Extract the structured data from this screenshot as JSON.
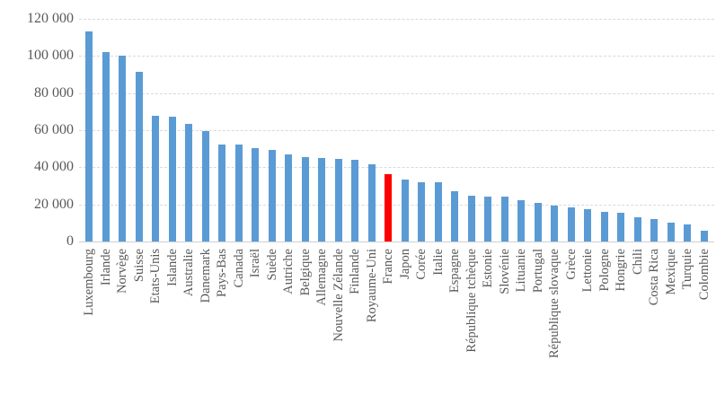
{
  "chart_data": {
    "type": "bar",
    "title": "",
    "xlabel": "",
    "ylabel": "",
    "legend": "none",
    "grid": "horizontal-dashed",
    "ylim": [
      0,
      120000
    ],
    "ytick_interval": 20000,
    "ytick_labels": [
      "0",
      "20 000",
      "40 000",
      "60 000",
      "80 000",
      "100 000",
      "120 000"
    ],
    "categories": [
      "Luxembourg",
      "Irlande",
      "Norvège",
      "Suisse",
      "Etats-Unis",
      "Islande",
      "Australie",
      "Danemark",
      "Pays-Bas",
      "Canada",
      "Israël",
      "Suède",
      "Autriche",
      "Belgique",
      "Allemagne",
      "Nouvelle Zélande",
      "Finlande",
      "Royaume-Uni",
      "France",
      "Japon",
      "Corée",
      "Italie",
      "Espagne",
      "République tchèque",
      "Estonie",
      "Slovénie",
      "Lituanie",
      "Portugal",
      "République slovaque",
      "Grèce",
      "Lettonie",
      "Pologne",
      "Hongrie",
      "Chili",
      "Costa Rica",
      "Mexique",
      "Turquie",
      "Colombie"
    ],
    "values": [
      113400,
      102000,
      100300,
      91300,
      67600,
      67400,
      63600,
      59600,
      52500,
      52400,
      50100,
      49200,
      47000,
      45700,
      44800,
      44600,
      44000,
      41700,
      36200,
      33400,
      32100,
      31800,
      27300,
      24800,
      24300,
      24100,
      22400,
      21000,
      19200,
      18300,
      17300,
      15900,
      15400,
      13300,
      12100,
      10300,
      9300,
      5900
    ],
    "highlight": {
      "category": "France",
      "color": "#FF0000"
    },
    "colors": {
      "bar": "#5B9BD5",
      "highlight_bar": "#FF0000",
      "axis_labels": "#595959",
      "gridlines": "#D9D9D9"
    }
  }
}
